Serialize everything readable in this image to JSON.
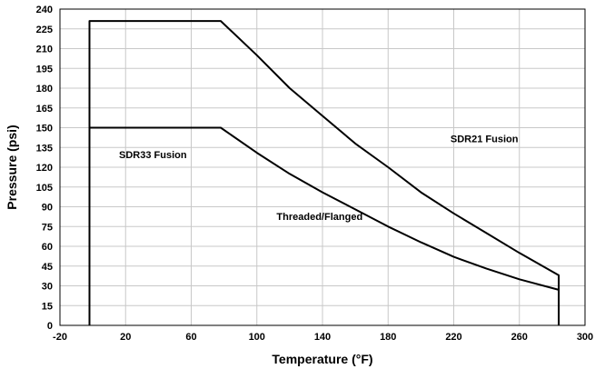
{
  "chart_data": {
    "type": "line",
    "xlabel": "Temperature (°F)",
    "ylabel": "Pressure (psi)",
    "xlim": [
      -20,
      300
    ],
    "ylim": [
      0,
      240
    ],
    "x_ticks": [
      -20,
      20,
      60,
      100,
      140,
      180,
      220,
      260,
      300
    ],
    "y_ticks": [
      0,
      15,
      30,
      45,
      60,
      75,
      90,
      105,
      120,
      135,
      150,
      165,
      180,
      195,
      210,
      225,
      240
    ],
    "grid": true,
    "legend": "none",
    "series": [
      {
        "name": "SDR21 Fusion",
        "x": [
          -2,
          -2,
          78,
          100,
          120,
          140,
          160,
          180,
          200,
          220,
          240,
          260,
          284,
          284
        ],
        "y": [
          0,
          231,
          231,
          205,
          180,
          159,
          138,
          120,
          101,
          85,
          70,
          55,
          38,
          0
        ]
      },
      {
        "name": "Threaded/Flanged",
        "x": [
          -2,
          78,
          100,
          120,
          140,
          160,
          180,
          200,
          220,
          240,
          260,
          284
        ],
        "y": [
          150,
          150,
          131,
          115,
          101,
          88,
          75,
          63,
          52,
          43,
          35,
          27
        ]
      }
    ],
    "annotations": [
      {
        "text": "SDR21 Fusion",
        "x": 218,
        "y": 139
      },
      {
        "text": "SDR33 Fusion",
        "x": 16,
        "y": 127
      },
      {
        "text": "Threaded/Flanged",
        "x": 112,
        "y": 80
      }
    ]
  }
}
